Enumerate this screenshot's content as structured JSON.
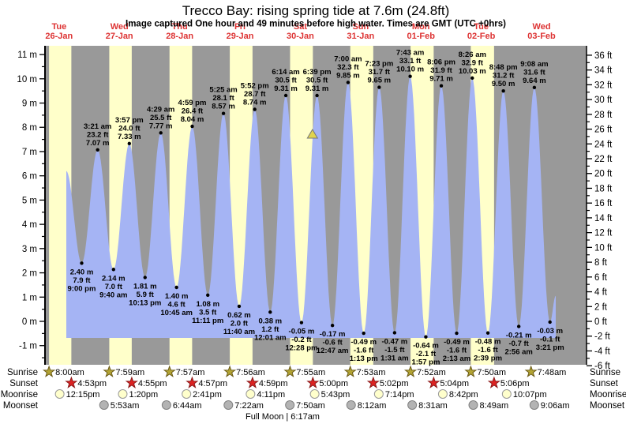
{
  "title": "Trecco Bay: rising  spring tide at 7.6m (24.8ft)",
  "subtitle": "Image captured One hour and 49 minutes before high water. Times are GMT (UTC +0hrs)",
  "days": [
    {
      "name": "Tue",
      "date": "26-Jan"
    },
    {
      "name": "Wed",
      "date": "27-Jan"
    },
    {
      "name": "Thu",
      "date": "28-Jan"
    },
    {
      "name": "Fri",
      "date": "29-Jan"
    },
    {
      "name": "Sat",
      "date": "30-Jan"
    },
    {
      "name": "Sun",
      "date": "31-Jan"
    },
    {
      "name": "Mon",
      "date": "01-Feb"
    },
    {
      "name": "Tue",
      "date": "02-Feb"
    },
    {
      "name": "Wed",
      "date": "03-Feb"
    }
  ],
  "chart_data": {
    "type": "area",
    "title": "Trecco Bay tide heights",
    "y_axis_left": {
      "unit": "m",
      "min": -1,
      "max": 11,
      "tick_step": 1
    },
    "y_axis_right": {
      "unit": "ft",
      "min": -6,
      "max": 36,
      "tick_step": 2
    },
    "tide_events": [
      {
        "day": 0,
        "time": "9:00 pm",
        "type": "low",
        "m": "2.40",
        "ft": "7.9"
      },
      {
        "day": 1,
        "time": "3:21 am",
        "type": "high",
        "m": "7.07",
        "ft": "23.2"
      },
      {
        "day": 1,
        "time": "9:40 am",
        "type": "low",
        "m": "2.14",
        "ft": "7.0"
      },
      {
        "day": 1,
        "time": "3:57 pm",
        "type": "high",
        "m": "7.33",
        "ft": "24.0"
      },
      {
        "day": 1,
        "time": "10:13 pm",
        "type": "low",
        "m": "1.81",
        "ft": "5.9"
      },
      {
        "day": 2,
        "time": "4:29 am",
        "type": "high",
        "m": "7.77",
        "ft": "25.5"
      },
      {
        "day": 2,
        "time": "10:45 am",
        "type": "low",
        "m": "1.40",
        "ft": "4.6"
      },
      {
        "day": 2,
        "time": "4:59 pm",
        "type": "high",
        "m": "8.04",
        "ft": "26.4"
      },
      {
        "day": 2,
        "time": "11:11 pm",
        "type": "low",
        "m": "1.08",
        "ft": "3.5"
      },
      {
        "day": 3,
        "time": "5:25 am",
        "type": "high",
        "m": "8.57",
        "ft": "28.1"
      },
      {
        "day": 3,
        "time": "11:40 am",
        "type": "low",
        "m": "0.62",
        "ft": "2.0"
      },
      {
        "day": 3,
        "time": "5:52 pm",
        "type": "high",
        "m": "8.74",
        "ft": "28.7"
      },
      {
        "day": 4,
        "time": "12:01 am",
        "type": "low",
        "m": "0.38",
        "ft": "1.2"
      },
      {
        "day": 4,
        "time": "6:14 am",
        "type": "high",
        "m": "9.31",
        "ft": "30.5"
      },
      {
        "day": 4,
        "time": "12:28 pm",
        "type": "low",
        "m": "-0.05",
        "ft": "-0.2"
      },
      {
        "day": 4,
        "time": "6:39 pm",
        "type": "high",
        "m": "9.31",
        "ft": "30.5"
      },
      {
        "day": 5,
        "time": "12:47 am",
        "type": "low",
        "m": "-0.17",
        "ft": "-0.6"
      },
      {
        "day": 5,
        "time": "7:00 am",
        "type": "high",
        "m": "9.85",
        "ft": "32.3"
      },
      {
        "day": 5,
        "time": "1:13 pm",
        "type": "low",
        "m": "-0.49",
        "ft": "-1.6"
      },
      {
        "day": 5,
        "time": "7:23 pm",
        "type": "high",
        "m": "9.65",
        "ft": "31.7"
      },
      {
        "day": 6,
        "time": "1:31 am",
        "type": "low",
        "m": "-0.47",
        "ft": "-1.5"
      },
      {
        "day": 6,
        "time": "7:43 am",
        "type": "high",
        "m": "10.10",
        "ft": "33.1"
      },
      {
        "day": 6,
        "time": "1:57 pm",
        "type": "low",
        "m": "-0.64",
        "ft": "-2.1"
      },
      {
        "day": 6,
        "time": "8:06 pm",
        "type": "high",
        "m": "9.71",
        "ft": "31.9"
      },
      {
        "day": 7,
        "time": "2:13 am",
        "type": "low",
        "m": "-0.49",
        "ft": "-1.6"
      },
      {
        "day": 7,
        "time": "8:26 am",
        "type": "high",
        "m": "10.03",
        "ft": "32.9"
      },
      {
        "day": 7,
        "time": "2:39 pm",
        "type": "low",
        "m": "-0.48",
        "ft": "-1.6"
      },
      {
        "day": 7,
        "time": "8:48 pm",
        "type": "high",
        "m": "9.50",
        "ft": "31.2"
      },
      {
        "day": 8,
        "time": "2:56 am",
        "type": "low",
        "m": "-0.21",
        "ft": "-0.7"
      },
      {
        "day": 8,
        "time": "9:08 am",
        "type": "high",
        "m": "9.64",
        "ft": "31.6"
      },
      {
        "day": 8,
        "time": "3:21 pm",
        "type": "low",
        "m": "-0.03",
        "ft": "-0.1"
      }
    ],
    "curve_start": {
      "day": 0,
      "time": "2:53 pm",
      "m": "6.2",
      "note": "curve clipped at left edge"
    },
    "curve_end": {
      "day": 8,
      "time": "5:38 pm",
      "m": "1.05",
      "note": "curve clipped at right edge"
    },
    "capture_marker": {
      "day": 4,
      "time": "4:50 pm",
      "shape": "triangle-up",
      "note": "1h 49m before 6:39 pm high water"
    }
  },
  "astro": {
    "row_labels": [
      "Sunrise",
      "Sunset",
      "Moonrise",
      "Moonset"
    ],
    "sunrise": [
      {
        "day": 0,
        "time": "8:00am"
      },
      {
        "day": 1,
        "time": "7:59am"
      },
      {
        "day": 2,
        "time": "7:57am"
      },
      {
        "day": 3,
        "time": "7:56am"
      },
      {
        "day": 4,
        "time": "7:55am"
      },
      {
        "day": 5,
        "time": "7:53am"
      },
      {
        "day": 6,
        "time": "7:52am"
      },
      {
        "day": 7,
        "time": "7:50am"
      },
      {
        "day": 8,
        "time": "7:48am"
      }
    ],
    "sunset": [
      {
        "day": 0,
        "time": "4:53pm"
      },
      {
        "day": 1,
        "time": "4:55pm"
      },
      {
        "day": 2,
        "time": "4:57pm"
      },
      {
        "day": 3,
        "time": "4:59pm"
      },
      {
        "day": 4,
        "time": "5:00pm"
      },
      {
        "day": 5,
        "time": "5:02pm"
      },
      {
        "day": 6,
        "time": "5:04pm"
      },
      {
        "day": 7,
        "time": "5:06pm"
      }
    ],
    "moonrise": [
      {
        "day": 0,
        "time": "12:15pm"
      },
      {
        "day": 1,
        "time": "1:20pm"
      },
      {
        "day": 2,
        "time": "2:41pm"
      },
      {
        "day": 3,
        "time": "4:11pm"
      },
      {
        "day": 4,
        "time": "5:43pm"
      },
      {
        "day": 5,
        "time": "7:14pm"
      },
      {
        "day": 6,
        "time": "8:42pm"
      },
      {
        "day": 7,
        "time": "10:07pm"
      }
    ],
    "moonset": [
      {
        "day": 1,
        "time": "5:53am"
      },
      {
        "day": 2,
        "time": "6:44am"
      },
      {
        "day": 3,
        "time": "7:22am"
      },
      {
        "day": 4,
        "time": "7:50am"
      },
      {
        "day": 5,
        "time": "8:12am"
      },
      {
        "day": 6,
        "time": "8:31am"
      },
      {
        "day": 7,
        "time": "8:49am"
      },
      {
        "day": 8,
        "time": "9:06am"
      }
    ],
    "full_moon": "Full Moon | 6:17am"
  },
  "colors": {
    "night": "#999999",
    "daylight": "#ffffca",
    "tide_fill": "#a5b4f4",
    "label_red": "#dd3333",
    "sunrise_star": "#b3a433",
    "sunset_star": "#dd2222",
    "moonrise_circle": "#ffffcc",
    "moonset_circle": "#b3b3b3",
    "marker_yellow": "#e0d44e",
    "text": "#000000"
  }
}
